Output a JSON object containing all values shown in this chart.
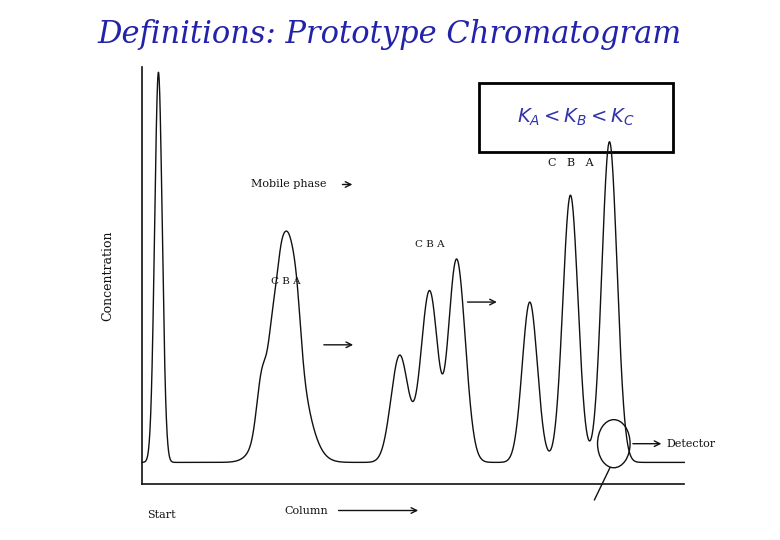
{
  "title": "Definitions: Prototype Chromatogram",
  "title_color": "#2222AA",
  "title_fontsize": 22,
  "bg_color": "#FFFFFF",
  "box_color": "#000000",
  "line_color": "#111111",
  "ylabel": "Concentration",
  "xlabel_text": "Column",
  "start_label": "Start",
  "mobile_phase_label": "Mobile phase",
  "detector_label": "Detector",
  "formula_text": "$K_A < K_B < K_C$",
  "formula_color": "#3333AA",
  "peak_labels_1": "C B A",
  "peak_labels_2": "C B A",
  "peak_labels_3": "C   B   A"
}
